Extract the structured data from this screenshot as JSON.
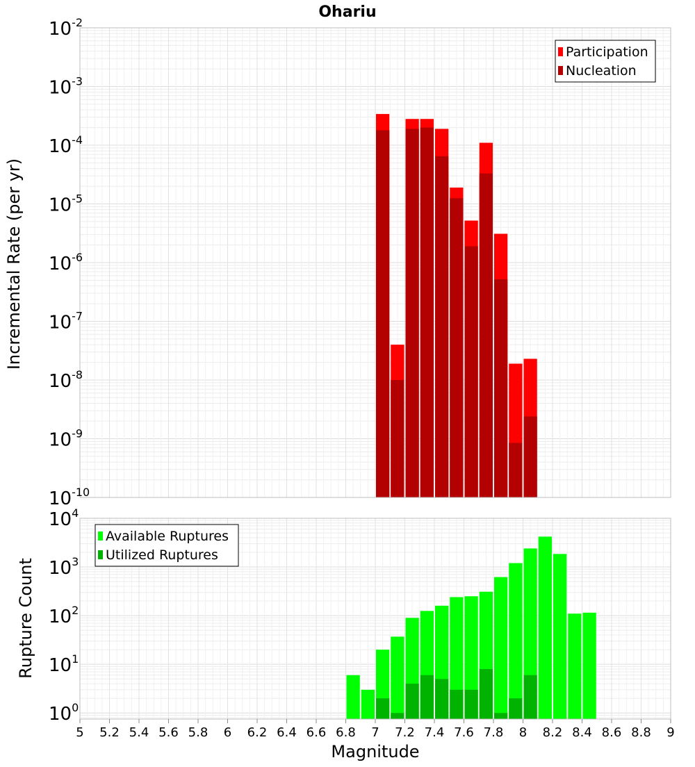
{
  "chart_data": [
    {
      "type": "bar",
      "title": "Ohariu",
      "ylabel": "Incremental Rate (per yr)",
      "yscale": "log",
      "ylim": [
        1e-10,
        0.01
      ],
      "xlim": [
        5,
        9
      ],
      "grid": true,
      "legend_position": "top-right",
      "bin_width": 0.1,
      "x": [
        7.05,
        7.15,
        7.25,
        7.35,
        7.45,
        7.55,
        7.65,
        7.75,
        7.85,
        7.95,
        8.05
      ],
      "series": [
        {
          "name": "Participation",
          "color": "#ff0000",
          "values": [
            0.00034,
            4e-08,
            0.00028,
            0.00028,
            0.00019,
            1.9e-05,
            5.2e-06,
            0.00011,
            3.1e-06,
            1.9e-08,
            2.3e-08
          ]
        },
        {
          "name": "Nucleation",
          "color": "#b30000",
          "values": [
            0.00018,
            1e-08,
            0.00019,
            0.0002,
            6.5e-05,
            1.25e-05,
            1.9e-06,
            3.3e-05,
            5.2e-07,
            8.5e-10,
            2.4e-09
          ]
        }
      ]
    },
    {
      "type": "bar",
      "xlabel": "Magnitude",
      "ylabel": "Rupture Count",
      "yscale": "log",
      "ylim": [
        0.75,
        10000
      ],
      "xlim": [
        5,
        9
      ],
      "grid": true,
      "legend_position": "top-left",
      "bin_width": 0.1,
      "x": [
        6.85,
        6.95,
        7.05,
        7.15,
        7.25,
        7.35,
        7.45,
        7.55,
        7.65,
        7.75,
        7.85,
        7.95,
        8.05,
        8.15,
        8.25,
        8.35,
        8.45
      ],
      "series": [
        {
          "name": "Available Ruptures",
          "color": "#00ff00",
          "values": [
            6,
            3,
            20,
            37,
            90,
            125,
            160,
            240,
            250,
            310,
            620,
            1200,
            2400,
            4200,
            1850,
            110,
            115
          ]
        },
        {
          "name": "Utilized Ruptures",
          "color": "#00b300",
          "values": [
            null,
            null,
            2,
            1,
            4,
            6,
            5,
            3,
            3,
            8,
            1,
            2,
            6,
            null,
            null,
            null,
            null
          ]
        }
      ],
      "xticks": [
        "5",
        "5.2",
        "5.4",
        "5.6",
        "5.8",
        "6",
        "6.2",
        "6.4",
        "6.6",
        "6.8",
        "7",
        "7.2",
        "7.4",
        "7.6",
        "7.8",
        "8",
        "8.2",
        "8.4",
        "8.6",
        "8.8",
        "9"
      ]
    }
  ]
}
